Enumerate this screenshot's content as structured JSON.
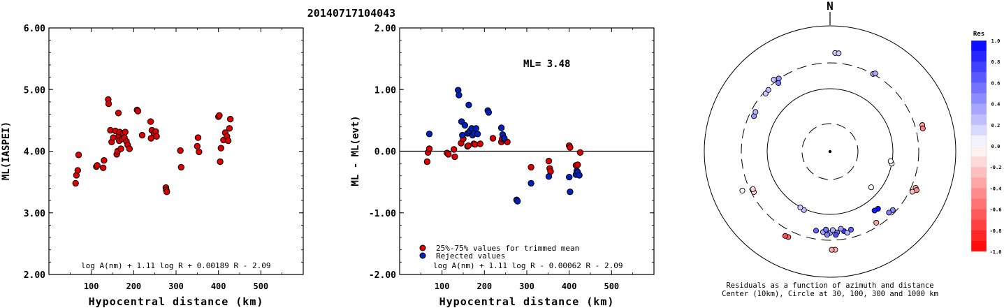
{
  "title": "20140717104043",
  "chart_data": [
    {
      "type": "scatter",
      "ylabel": "ML(IASPEI)",
      "xlabel": "Hypocentral distance (km)",
      "xlim": [
        0,
        600
      ],
      "ylim": [
        2.0,
        6.0
      ],
      "xticks": [
        "100",
        "200",
        "300",
        "400",
        "500"
      ],
      "yticks": [
        "2.00",
        "3.00",
        "4.00",
        "5.00",
        "6.00"
      ],
      "formula": "log A(nm) + 1.11 log R + 0.00189 R - 2.09",
      "series": [
        {
          "color": "#dd0000",
          "points": [
            [
              63,
              3.48
            ],
            [
              65,
              3.61
            ],
            [
              68,
              3.69
            ],
            [
              70,
              3.94
            ],
            [
              112,
              3.75
            ],
            [
              114,
              3.77
            ],
            [
              128,
              3.73
            ],
            [
              130,
              3.85
            ],
            [
              140,
              4.84
            ],
            [
              141,
              4.77
            ],
            [
              145,
              4.34
            ],
            [
              148,
              4.15
            ],
            [
              152,
              4.22
            ],
            [
              157,
              4.33
            ],
            [
              160,
              3.95
            ],
            [
              162,
              4.0
            ],
            [
              164,
              4.62
            ],
            [
              165,
              4.25
            ],
            [
              166,
              4.17
            ],
            [
              167,
              4.31
            ],
            [
              170,
              4.04
            ],
            [
              173,
              4.2
            ],
            [
              175,
              4.29
            ],
            [
              178,
              4.22
            ],
            [
              180,
              4.31
            ],
            [
              183,
              4.16
            ],
            [
              186,
              4.1
            ],
            [
              190,
              4.04
            ],
            [
              208,
              4.67
            ],
            [
              210,
              4.65
            ],
            [
              220,
              4.26
            ],
            [
              240,
              4.48
            ],
            [
              241,
              4.21
            ],
            [
              243,
              4.34
            ],
            [
              248,
              4.29
            ],
            [
              252,
              4.32
            ],
            [
              254,
              4.24
            ],
            [
              276,
              3.41
            ],
            [
              277,
              3.37
            ],
            [
              278,
              3.34
            ],
            [
              310,
              4.01
            ],
            [
              312,
              3.74
            ],
            [
              350,
              4.08
            ],
            [
              352,
              4.22
            ],
            [
              354,
              3.99
            ],
            [
              400,
              4.56
            ],
            [
              402,
              4.58
            ],
            [
              404,
              3.83
            ],
            [
              406,
              4.05
            ],
            [
              412,
              4.18
            ],
            [
              416,
              4.3
            ],
            [
              420,
              4.24
            ],
            [
              423,
              4.17
            ],
            [
              426,
              4.37
            ],
            [
              428,
              4.52
            ]
          ]
        }
      ]
    },
    {
      "type": "scatter",
      "ylabel": "ML - ML(evt)",
      "xlabel": "Hypocentral distance (km)",
      "xlim": [
        0,
        600
      ],
      "ylim": [
        -2.0,
        2.0
      ],
      "xticks": [
        "100",
        "200",
        "300",
        "400",
        "500"
      ],
      "yticks": [
        "-2.00",
        "-1.00",
        "0.00",
        "1.00",
        "2.00"
      ],
      "annotation": "ML= 3.48",
      "formula": "log A(nm) + 1.11 log R - 0.00062 R - 2.09",
      "reference_line": 0,
      "legend": [
        "25%-75% values for trimmed mean",
        "Rejected values"
      ],
      "series": [
        {
          "name": "25%-75% values for trimmed mean",
          "color": "#dd0000",
          "points": [
            [
              65,
              -0.17
            ],
            [
              67,
              -0.02
            ],
            [
              70,
              0.04
            ],
            [
              112,
              -0.03
            ],
            [
              115,
              -0.05
            ],
            [
              128,
              0.03
            ],
            [
              130,
              -0.09
            ],
            [
              145,
              0.13
            ],
            [
              150,
              0.2
            ],
            [
              160,
              0.08
            ],
            [
              162,
              0.09
            ],
            [
              175,
              0.12
            ],
            [
              178,
              0.11
            ],
            [
              190,
              0.12
            ],
            [
              220,
              0.21
            ],
            [
              240,
              0.15
            ],
            [
              242,
              0.2
            ],
            [
              247,
              0.19
            ],
            [
              254,
              0.15
            ],
            [
              310,
              -0.26
            ],
            [
              352,
              -0.16
            ],
            [
              354,
              -0.28
            ],
            [
              356,
              -0.33
            ],
            [
              400,
              0.09
            ],
            [
              402,
              0.06
            ],
            [
              416,
              -0.23
            ],
            [
              420,
              -0.22
            ],
            [
              426,
              -0.02
            ]
          ]
        },
        {
          "name": "Rejected values",
          "color": "#0022bb",
          "points": [
            [
              70,
              0.28
            ],
            [
              138,
              0.99
            ],
            [
              140,
              0.91
            ],
            [
              146,
              0.48
            ],
            [
              148,
              0.26
            ],
            [
              154,
              0.42
            ],
            [
              160,
              0.29
            ],
            [
              163,
              0.75
            ],
            [
              164,
              0.3
            ],
            [
              166,
              0.33
            ],
            [
              170,
              0.37
            ],
            [
              172,
              0.26
            ],
            [
              176,
              0.29
            ],
            [
              180,
              0.37
            ],
            [
              184,
              0.28
            ],
            [
              208,
              0.66
            ],
            [
              210,
              0.63
            ],
            [
              240,
              0.38
            ],
            [
              243,
              0.27
            ],
            [
              247,
              0.21
            ],
            [
              276,
              -0.79
            ],
            [
              278,
              -0.81
            ],
            [
              310,
              -0.52
            ],
            [
              352,
              -0.41
            ],
            [
              400,
              -0.42
            ],
            [
              402,
              -0.66
            ],
            [
              416,
              -0.38
            ],
            [
              418,
              -0.32
            ],
            [
              420,
              -0.34
            ],
            [
              424,
              -0.39
            ]
          ]
        }
      ]
    },
    {
      "type": "scatter",
      "subtype": "polar",
      "north_label": "N",
      "caption_line1": "Residuals as a function of azimuth and distance",
      "caption_line2": "Center (10km), Circle at 30, 100, 300 and 1000 km",
      "rings_km": [
        30,
        100,
        300,
        1000
      ],
      "colorbar": {
        "title": "Res",
        "ticks": [
          "1.0",
          "0.8",
          "0.6",
          "0.4",
          "0.2",
          "0.0",
          "-0.2",
          "-0.4",
          "-0.6",
          "-0.8",
          "-1.0"
        ]
      },
      "points": [
        {
          "az": 3,
          "dist_km": 415,
          "res": 0.18
        },
        {
          "az": 5,
          "dist_km": 415,
          "res": 0.2
        },
        {
          "az": 29,
          "dist_km": 300,
          "res": 0.3
        },
        {
          "az": 30,
          "dist_km": 315,
          "res": 0.35
        },
        {
          "az": -35,
          "dist_km": 305,
          "res": 0.4
        },
        {
          "az": -37,
          "dist_km": 265,
          "res": 0.5
        },
        {
          "az": -38,
          "dist_km": 325,
          "res": 0.25
        },
        {
          "az": 74,
          "dist_km": 380,
          "res": -0.4
        },
        {
          "az": 76,
          "dist_km": 375,
          "res": -0.5
        },
        {
          "az": 113,
          "dist_km": 345,
          "res": -0.3
        },
        {
          "az": 114,
          "dist_km": 365,
          "res": -0.45
        },
        {
          "az": 116,
          "dist_km": 330,
          "res": -0.25
        },
        {
          "az": 101,
          "dist_km": 100,
          "res": 0.0
        },
        {
          "az": 99,
          "dist_km": 95,
          "res": 0.0
        },
        {
          "az": 131,
          "dist_km": 75,
          "res": 0.0
        },
        {
          "az": 133,
          "dist_km": 265,
          "res": 0.45
        },
        {
          "az": 136,
          "dist_km": 255,
          "res": 0.5
        },
        {
          "az": 140,
          "dist_km": 165,
          "res": 0.95
        },
        {
          "az": 143,
          "dist_km": 160,
          "res": 0.9
        },
        {
          "az": 147,
          "dist_km": 255,
          "res": -0.35
        },
        {
          "az": 165,
          "dist_km": 215,
          "res": 0.6
        },
        {
          "az": 170,
          "dist_km": 215,
          "res": 0.8
        },
        {
          "az": 175,
          "dist_km": 218,
          "res": 0.5
        },
        {
          "az": 180,
          "dist_km": 220,
          "res": 0.45
        },
        {
          "az": 185,
          "dist_km": 215,
          "res": 0.35
        },
        {
          "az": 190,
          "dist_km": 210,
          "res": 0.6
        },
        {
          "az": 172,
          "dist_km": 190,
          "res": 0.4
        },
        {
          "az": 178,
          "dist_km": 195,
          "res": 0.3
        },
        {
          "az": 183,
          "dist_km": 192,
          "res": 0.55
        },
        {
          "az": 176,
          "dist_km": 240,
          "res": 0.7
        },
        {
          "az": 182,
          "dist_km": 238,
          "res": 0.5
        },
        {
          "az": 168,
          "dist_km": 235,
          "res": 0.3
        },
        {
          "az": 177,
          "dist_km": 410,
          "res": -0.3
        },
        {
          "az": 179,
          "dist_km": 410,
          "res": -0.35
        },
        {
          "az": 206,
          "dist_km": 370,
          "res": -0.6
        },
        {
          "az": 208,
          "dist_km": 375,
          "res": -0.7
        },
        {
          "az": 204,
          "dist_km": 105,
          "res": 0.25
        },
        {
          "az": 208,
          "dist_km": 102,
          "res": 0.2
        },
        {
          "az": 242,
          "dist_km": 270,
          "res": -0.2
        },
        {
          "az": 244,
          "dist_km": 265,
          "res": -0.15
        },
        {
          "az": 246,
          "dist_km": 380,
          "res": 0.0
        },
        {
          "az": 295,
          "dist_km": 245,
          "res": 0.4
        },
        {
          "az": 298,
          "dist_km": 250,
          "res": 0.3
        },
        {
          "az": 312,
          "dist_km": 275,
          "res": 0.2
        },
        {
          "az": 315,
          "dist_km": 280,
          "res": 0.25
        }
      ]
    }
  ]
}
